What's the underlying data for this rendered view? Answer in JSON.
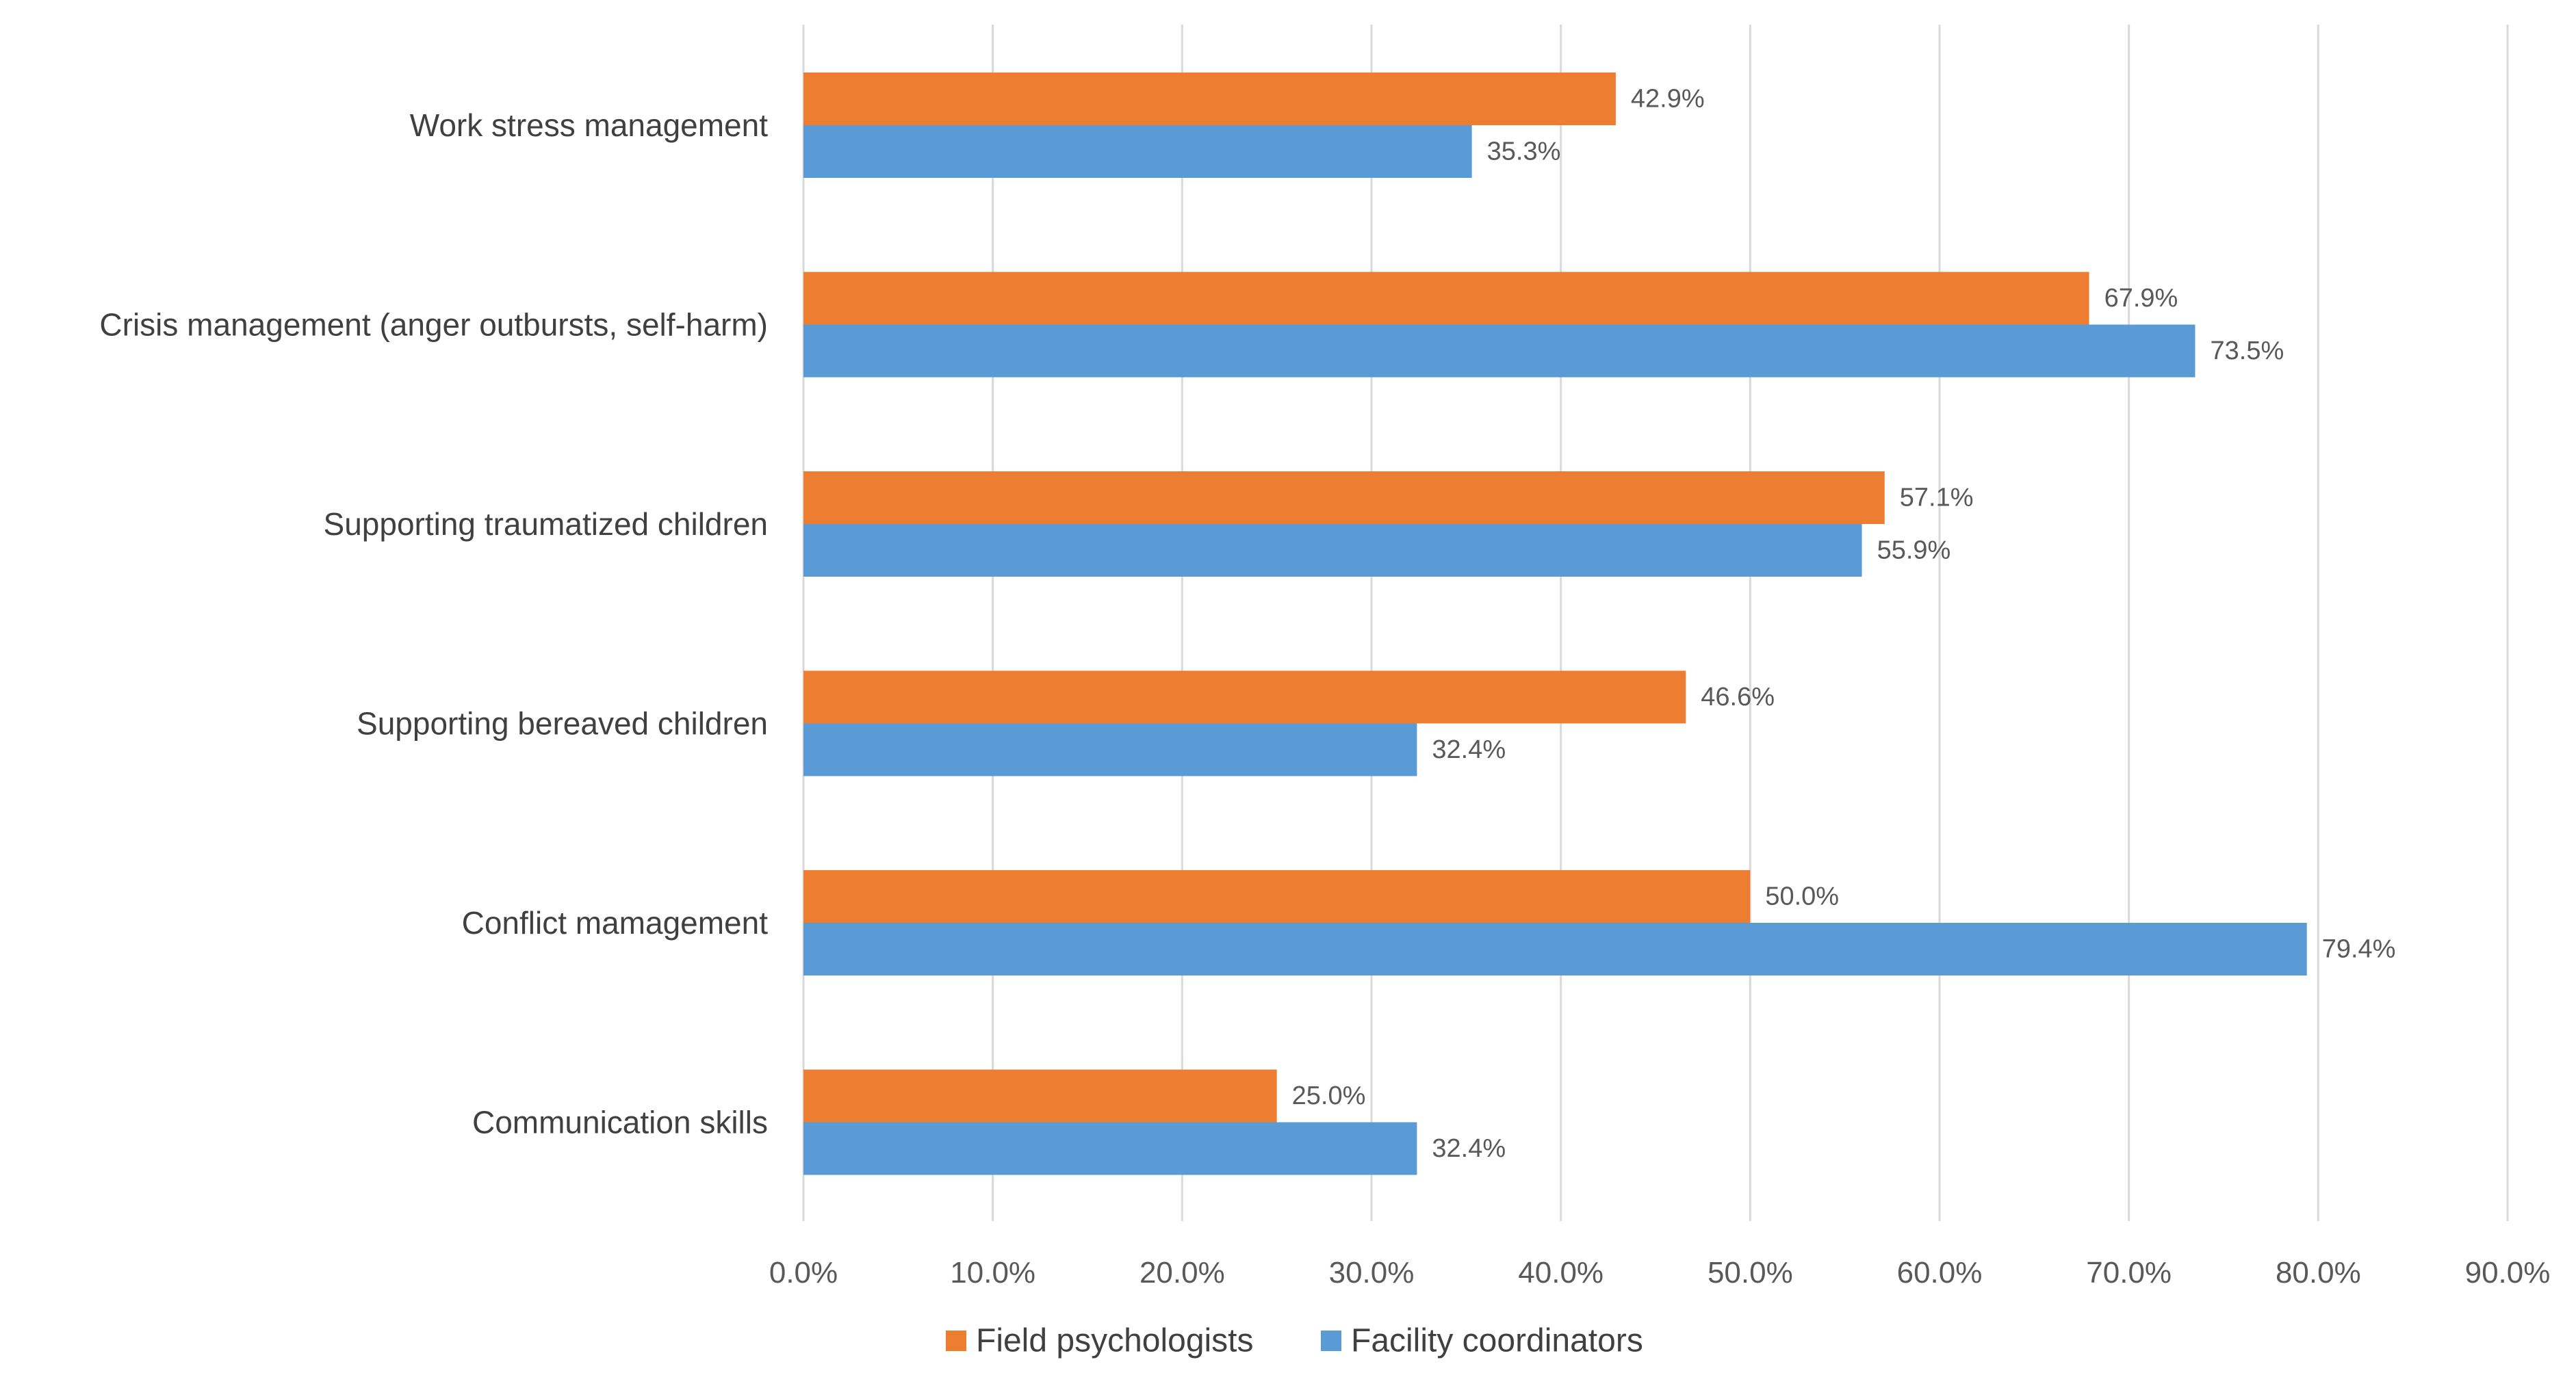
{
  "chart_data": {
    "type": "bar",
    "orientation": "horizontal",
    "title": "",
    "xlabel": "",
    "ylabel": "",
    "categories": [
      "Work stress management",
      "Crisis management (anger outbursts, self-harm)",
      "Supporting traumatized children",
      "Supporting bereaved children",
      "Conflict mamagement",
      "Communication skills"
    ],
    "series": [
      {
        "name": "Field psychologists",
        "color": "#ed7d31",
        "values": [
          42.9,
          67.9,
          57.1,
          46.6,
          50.0,
          25.0
        ],
        "labels": [
          "42.9%",
          "67.9%",
          "57.1%",
          "46.6%",
          "50.0%",
          "25.0%"
        ]
      },
      {
        "name": "Facility coordinators",
        "color": "#5b9bd5",
        "values": [
          35.3,
          73.5,
          55.9,
          32.4,
          79.4,
          32.4
        ],
        "labels": [
          "35.3%",
          "73.5%",
          "55.9%",
          "32.4%",
          "79.4%",
          "32.4%"
        ]
      }
    ],
    "xlim": [
      0,
      90
    ],
    "xticks": [
      0,
      10,
      20,
      30,
      40,
      50,
      60,
      70,
      80,
      90
    ],
    "xtick_labels": [
      "0.0%",
      "10.0%",
      "20.0%",
      "30.0%",
      "40.0%",
      "50.0%",
      "60.0%",
      "70.0%",
      "80.0%",
      "90.0%"
    ],
    "grid": "vertical",
    "legend_position": "bottom"
  }
}
